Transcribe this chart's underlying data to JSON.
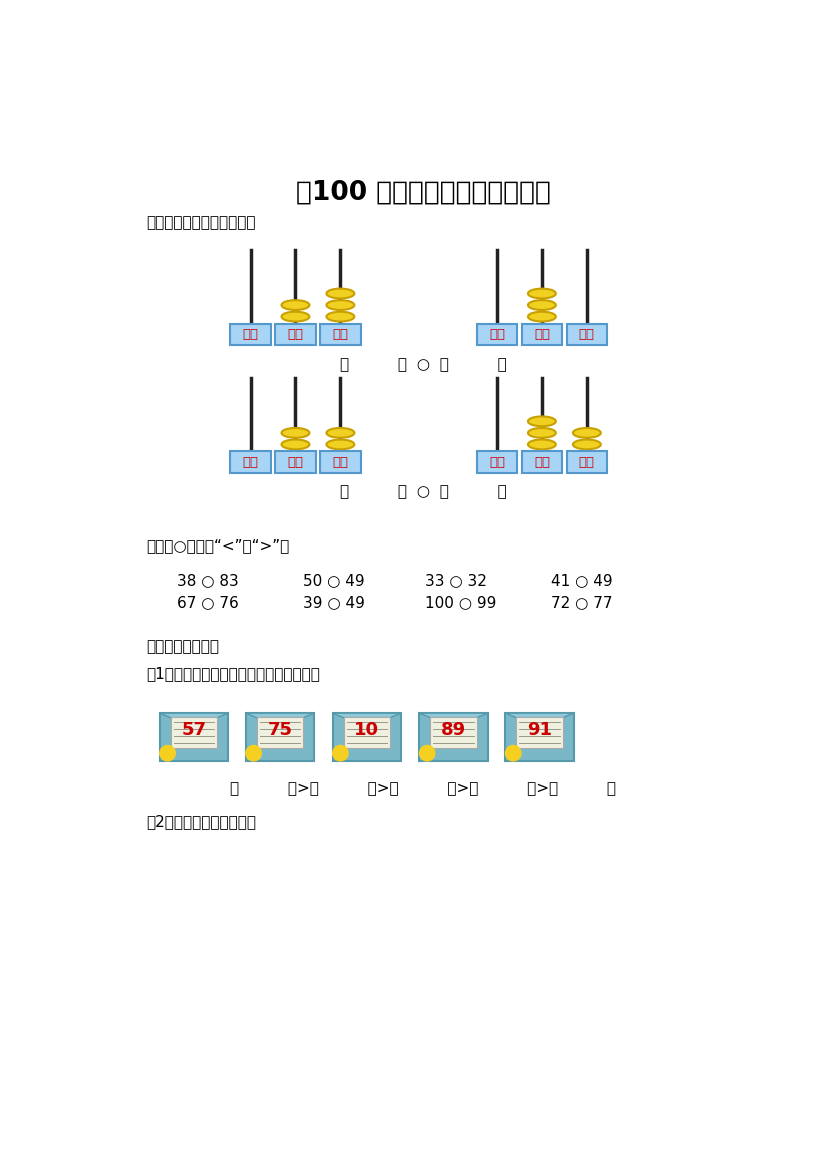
{
  "title": "《100 以内数的认识》同步测试",
  "section1_label": "一、先填数，再比较大小。",
  "section2_label": "二、在○里填上“<”或“>”。",
  "section3_label": "三、按要求排队。",
  "sub3_1": "（1）把信件按从多到少的顺序排列起来。",
  "sub3_2": "（2）比比谁虫子吃的多。",
  "comparison_row1": [
    "38 ○ 83",
    "50 ○ 49",
    "33 ○ 32",
    "41 ○ 49"
  ],
  "comparison_row2": [
    "67 ○ 76",
    "39 ○ 49",
    "100 ○ 99",
    "72 ○ 77"
  ],
  "abacus_label": [
    "百位",
    "十位",
    "个位"
  ],
  "abacus_color_bg": "#a8d4f5",
  "abacus_color_text": "#cc0000",
  "bead_color": "#f0d020",
  "bead_outline": "#c8a000",
  "envelope_numbers": [
    "57",
    "75",
    "10",
    "89",
    "91"
  ],
  "envelope_color": "#7ab8c8",
  "number_color_red": "#cc0000",
  "bracket_line1": "（          ）>（          ）>（          ）>（          ）>（          ）",
  "abacus1_beads_shi": 2,
  "abacus1_beads_ge": 3,
  "abacus2_beads_shi": 3,
  "abacus2_beads_ge": 0,
  "abacus3_beads_shi": 2,
  "abacus3_beads_ge": 2,
  "abacus4_beads_shi": 3,
  "abacus4_beads_ge": 2,
  "compare_text": "（          ）○（          ）"
}
